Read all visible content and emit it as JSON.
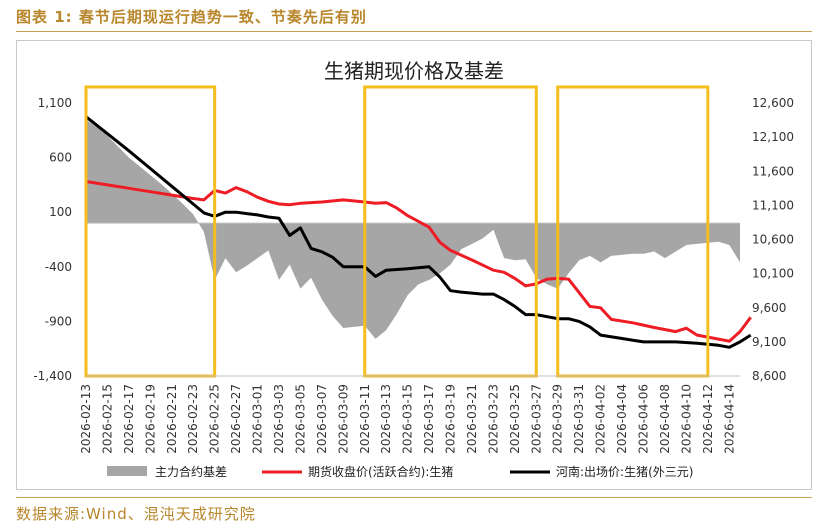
{
  "header": {
    "title": "图表 1: 春节后期现运行趋势一致、节奏先后有别"
  },
  "footer": {
    "source": "数据来源:Wind、混沌天成研究院"
  },
  "colors": {
    "accent": "#c8a052",
    "highlight_box": "#f5be1c",
    "basis_fill": "#a6a6a6",
    "futures_line": "#ee1c25",
    "spot_line": "#000000"
  },
  "chart_data": {
    "type": "line",
    "title": "生猪期现价格及基差",
    "x_labels": [
      "2026-02-13",
      "2026-02-15",
      "2026-02-17",
      "2026-02-19",
      "2026-02-21",
      "2026-02-23",
      "2026-02-25",
      "2026-02-27",
      "2026-03-01",
      "2026-03-03",
      "2026-03-05",
      "2026-03-07",
      "2026-03-09",
      "2026-03-11",
      "2026-03-13",
      "2026-03-15",
      "2026-03-17",
      "2026-03-19",
      "2026-03-21",
      "2026-03-23",
      "2026-03-25",
      "2026-03-27",
      "2026-03-29",
      "2026-03-31",
      "2026-04-02",
      "2026-04-04",
      "2026-04-06",
      "2026-04-08",
      "2026-04-10",
      "2026-04-12",
      "2026-04-14"
    ],
    "x_range": [
      "2026-02-13",
      "2026-04-15"
    ],
    "y_left": {
      "range": [
        -1400,
        1100
      ],
      "ticks": [
        "1,100",
        "600",
        "100",
        "-400",
        "-900",
        "-1,400"
      ]
    },
    "y_right": {
      "range": [
        8600,
        12600
      ],
      "ticks": [
        "12,600",
        "12,100",
        "11,600",
        "11,100",
        "10,600",
        "10,100",
        "9,600",
        "9,100",
        "8,600"
      ]
    },
    "series": [
      {
        "name": "主力合约基差",
        "kind": "area",
        "axis": "left",
        "points": [
          [
            "2026-02-13",
            950
          ],
          [
            "2026-02-14",
            880
          ],
          [
            "2026-02-15",
            800
          ],
          [
            "2026-02-16",
            700
          ],
          [
            "2026-02-17",
            600
          ],
          [
            "2026-02-18",
            520
          ],
          [
            "2026-02-19",
            440
          ],
          [
            "2026-02-20",
            360
          ],
          [
            "2026-02-21",
            270
          ],
          [
            "2026-02-22",
            180
          ],
          [
            "2026-02-23",
            80
          ],
          [
            "2026-02-24",
            -80
          ],
          [
            "2026-02-25",
            -520
          ],
          [
            "2026-02-26",
            -320
          ],
          [
            "2026-02-27",
            -450
          ],
          [
            "2026-02-28",
            -390
          ],
          [
            "2026-03-01",
            -320
          ],
          [
            "2026-03-02",
            -250
          ],
          [
            "2026-03-03",
            -520
          ],
          [
            "2026-03-04",
            -380
          ],
          [
            "2026-03-05",
            -600
          ],
          [
            "2026-03-06",
            -500
          ],
          [
            "2026-03-07",
            -700
          ],
          [
            "2026-03-08",
            -850
          ],
          [
            "2026-03-09",
            -960
          ],
          [
            "2026-03-10",
            -950
          ],
          [
            "2026-03-11",
            -940
          ],
          [
            "2026-03-12",
            -1060
          ],
          [
            "2026-03-13",
            -980
          ],
          [
            "2026-03-14",
            -830
          ],
          [
            "2026-03-15",
            -660
          ],
          [
            "2026-03-16",
            -560
          ],
          [
            "2026-03-17",
            -520
          ],
          [
            "2026-03-18",
            -460
          ],
          [
            "2026-03-19",
            -380
          ],
          [
            "2026-03-20",
            -240
          ],
          [
            "2026-03-21",
            -190
          ],
          [
            "2026-03-22",
            -140
          ],
          [
            "2026-03-23",
            -60
          ],
          [
            "2026-03-24",
            -320
          ],
          [
            "2026-03-25",
            -340
          ],
          [
            "2026-03-26",
            -330
          ],
          [
            "2026-03-27",
            -500
          ],
          [
            "2026-03-28",
            -560
          ],
          [
            "2026-03-29",
            -600
          ],
          [
            "2026-03-30",
            -460
          ],
          [
            "2026-03-31",
            -340
          ],
          [
            "2026-04-01",
            -300
          ],
          [
            "2026-04-02",
            -360
          ],
          [
            "2026-04-03",
            -300
          ],
          [
            "2026-04-04",
            -290
          ],
          [
            "2026-04-05",
            -280
          ],
          [
            "2026-04-06",
            -280
          ],
          [
            "2026-04-07",
            -260
          ],
          [
            "2026-04-08",
            -320
          ],
          [
            "2026-04-09",
            -260
          ],
          [
            "2026-04-10",
            -200
          ],
          [
            "2026-04-11",
            -190
          ],
          [
            "2026-04-12",
            -180
          ],
          [
            "2026-04-13",
            -170
          ],
          [
            "2026-04-14",
            -200
          ],
          [
            "2026-04-15",
            -360
          ]
        ]
      },
      {
        "name": "期货收盘价(活跃合约):生猪",
        "kind": "line",
        "axis": "right",
        "points": [
          [
            "2026-02-13",
            11450
          ],
          [
            "2026-02-15",
            11400
          ],
          [
            "2026-02-17",
            11350
          ],
          [
            "2026-02-19",
            11300
          ],
          [
            "2026-02-21",
            11250
          ],
          [
            "2026-02-23",
            11200
          ],
          [
            "2026-02-24",
            11180
          ],
          [
            "2026-02-25",
            11320
          ],
          [
            "2026-02-26",
            11280
          ],
          [
            "2026-02-27",
            11360
          ],
          [
            "2026-02-28",
            11300
          ],
          [
            "2026-03-01",
            11220
          ],
          [
            "2026-03-02",
            11160
          ],
          [
            "2026-03-03",
            11120
          ],
          [
            "2026-03-04",
            11110
          ],
          [
            "2026-03-05",
            11130
          ],
          [
            "2026-03-07",
            11150
          ],
          [
            "2026-03-09",
            11180
          ],
          [
            "2026-03-11",
            11150
          ],
          [
            "2026-03-12",
            11130
          ],
          [
            "2026-03-13",
            11140
          ],
          [
            "2026-03-14",
            11060
          ],
          [
            "2026-03-15",
            10950
          ],
          [
            "2026-03-17",
            10780
          ],
          [
            "2026-03-18",
            10560
          ],
          [
            "2026-03-19",
            10440
          ],
          [
            "2026-03-21",
            10300
          ],
          [
            "2026-03-23",
            10150
          ],
          [
            "2026-03-24",
            10120
          ],
          [
            "2026-03-25",
            10030
          ],
          [
            "2026-03-26",
            9920
          ],
          [
            "2026-03-27",
            9950
          ],
          [
            "2026-03-28",
            10020
          ],
          [
            "2026-03-29",
            10030
          ],
          [
            "2026-03-30",
            10020
          ],
          [
            "2026-03-31",
            9820
          ],
          [
            "2026-04-01",
            9620
          ],
          [
            "2026-04-02",
            9600
          ],
          [
            "2026-04-03",
            9430
          ],
          [
            "2026-04-05",
            9380
          ],
          [
            "2026-04-07",
            9310
          ],
          [
            "2026-04-09",
            9250
          ],
          [
            "2026-04-10",
            9300
          ],
          [
            "2026-04-11",
            9200
          ],
          [
            "2026-04-13",
            9140
          ],
          [
            "2026-04-14",
            9110
          ],
          [
            "2026-04-15",
            9250
          ],
          [
            "2026-04-16",
            9460
          ]
        ]
      },
      {
        "name": "河南:出场价:生猪(外三元)",
        "kind": "line",
        "axis": "right",
        "points": [
          [
            "2026-02-13",
            12400
          ],
          [
            "2026-02-15",
            12150
          ],
          [
            "2026-02-17",
            11900
          ],
          [
            "2026-02-19",
            11640
          ],
          [
            "2026-02-21",
            11380
          ],
          [
            "2026-02-23",
            11120
          ],
          [
            "2026-02-24",
            10990
          ],
          [
            "2026-02-25",
            10940
          ],
          [
            "2026-02-26",
            11000
          ],
          [
            "2026-02-27",
            11000
          ],
          [
            "2026-02-28",
            10980
          ],
          [
            "2026-03-01",
            10960
          ],
          [
            "2026-03-02",
            10930
          ],
          [
            "2026-03-03",
            10910
          ],
          [
            "2026-03-04",
            10660
          ],
          [
            "2026-03-05",
            10770
          ],
          [
            "2026-03-06",
            10470
          ],
          [
            "2026-03-07",
            10420
          ],
          [
            "2026-03-08",
            10340
          ],
          [
            "2026-03-09",
            10200
          ],
          [
            "2026-03-10",
            10200
          ],
          [
            "2026-03-11",
            10200
          ],
          [
            "2026-03-12",
            10060
          ],
          [
            "2026-03-13",
            10150
          ],
          [
            "2026-03-15",
            10170
          ],
          [
            "2026-03-17",
            10200
          ],
          [
            "2026-03-18",
            10050
          ],
          [
            "2026-03-19",
            9850
          ],
          [
            "2026-03-20",
            9830
          ],
          [
            "2026-03-22",
            9800
          ],
          [
            "2026-03-23",
            9800
          ],
          [
            "2026-03-24",
            9720
          ],
          [
            "2026-03-25",
            9620
          ],
          [
            "2026-03-26",
            9500
          ],
          [
            "2026-03-27",
            9500
          ],
          [
            "2026-03-29",
            9440
          ],
          [
            "2026-03-30",
            9440
          ],
          [
            "2026-03-31",
            9400
          ],
          [
            "2026-04-01",
            9320
          ],
          [
            "2026-04-02",
            9200
          ],
          [
            "2026-04-04",
            9150
          ],
          [
            "2026-04-06",
            9100
          ],
          [
            "2026-04-07",
            9100
          ],
          [
            "2026-04-09",
            9100
          ],
          [
            "2026-04-11",
            9080
          ],
          [
            "2026-04-13",
            9050
          ],
          [
            "2026-04-14",
            9020
          ],
          [
            "2026-04-15",
            9100
          ],
          [
            "2026-04-16",
            9200
          ]
        ]
      }
    ],
    "highlights": [
      {
        "from": "2026-02-13",
        "to": "2026-02-25"
      },
      {
        "from": "2026-03-11",
        "to": "2026-03-27"
      },
      {
        "from": "2026-03-29",
        "to": "2026-04-12"
      }
    ],
    "legend_position": "bottom",
    "grid": false
  }
}
